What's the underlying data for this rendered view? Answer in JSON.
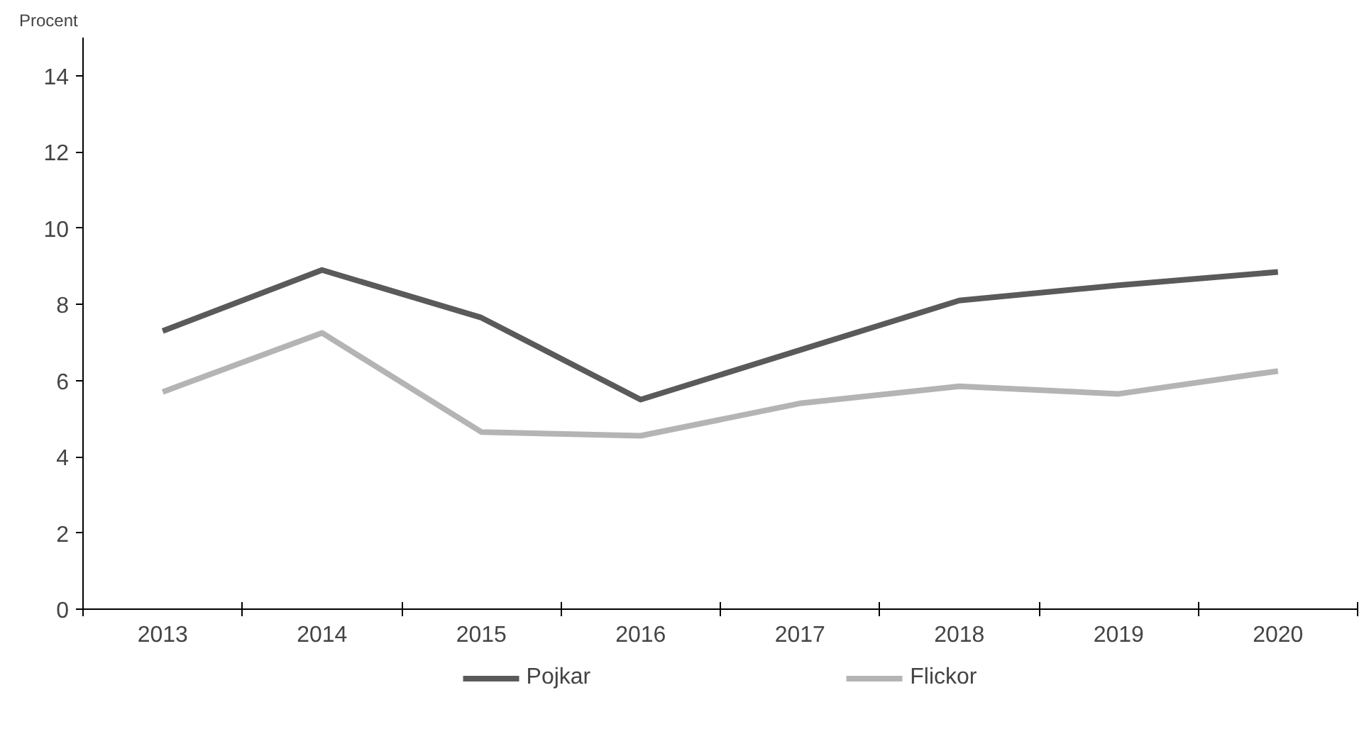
{
  "chart_data": {
    "type": "line",
    "ylabel": "Procent",
    "categories": [
      "2013",
      "2014",
      "2015",
      "2016",
      "2017",
      "2018",
      "2019",
      "2020"
    ],
    "series": [
      {
        "name": "Pojkar",
        "color": "#5a5a5a",
        "values": [
          7.3,
          8.9,
          7.65,
          5.5,
          6.8,
          8.1,
          8.5,
          8.85
        ]
      },
      {
        "name": "Flickor",
        "color": "#b4b4b4",
        "values": [
          5.7,
          7.25,
          4.65,
          4.55,
          5.4,
          5.85,
          5.65,
          6.25
        ]
      }
    ],
    "ylim": [
      0,
      15
    ],
    "yticks": [
      0,
      2,
      4,
      6,
      8,
      10,
      12,
      14
    ],
    "grid": false,
    "legend": "bottom",
    "marker": "none",
    "line_style": "solid"
  }
}
